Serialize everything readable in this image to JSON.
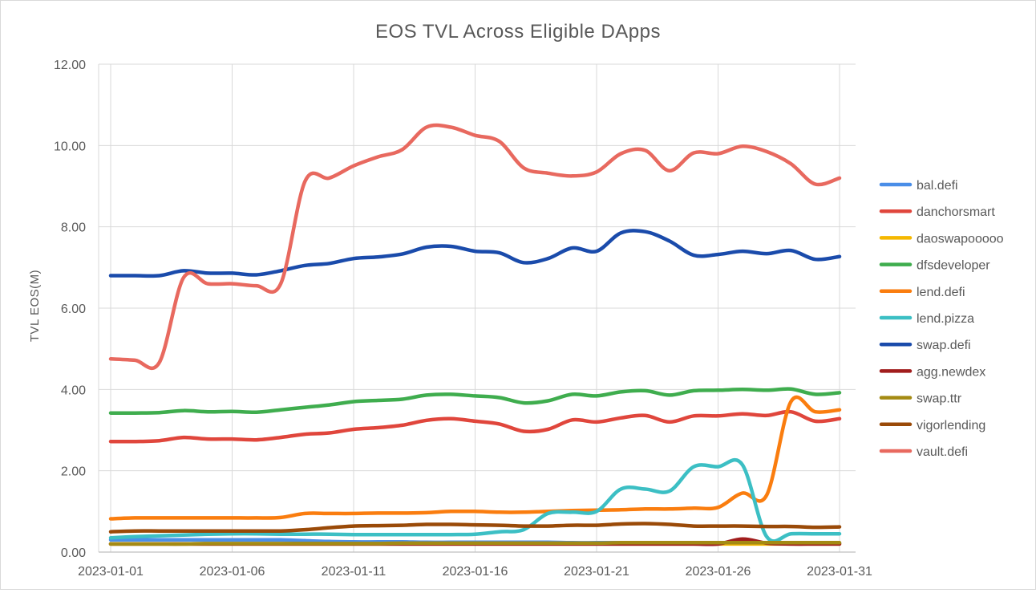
{
  "chart_data": {
    "type": "line",
    "title": "EOS TVL Across Eligible DApps",
    "xlabel": "",
    "ylabel": "TVL EOS(M)",
    "ylim": [
      0,
      12
    ],
    "yticks": [
      "0.00",
      "2.00",
      "4.00",
      "6.00",
      "8.00",
      "10.00",
      "12.00"
    ],
    "xticks": [
      "2023-01-01",
      "2023-01-06",
      "2023-01-11",
      "2023-01-16",
      "2023-01-21",
      "2023-01-26",
      "2023-01-31"
    ],
    "x": [
      "2023-01-01",
      "2023-01-02",
      "2023-01-03",
      "2023-01-04",
      "2023-01-05",
      "2023-01-06",
      "2023-01-07",
      "2023-01-08",
      "2023-01-09",
      "2023-01-10",
      "2023-01-11",
      "2023-01-12",
      "2023-01-13",
      "2023-01-14",
      "2023-01-15",
      "2023-01-16",
      "2023-01-17",
      "2023-01-18",
      "2023-01-19",
      "2023-01-20",
      "2023-01-21",
      "2023-01-22",
      "2023-01-23",
      "2023-01-24",
      "2023-01-25",
      "2023-01-26",
      "2023-01-27",
      "2023-01-28",
      "2023-01-29",
      "2023-01-30",
      "2023-01-31"
    ],
    "grid": true,
    "legend_position": "right",
    "series": [
      {
        "name": "bal.defi",
        "color": "#4a8ee8",
        "values": [
          0.3,
          0.3,
          0.3,
          0.3,
          0.3,
          0.3,
          0.3,
          0.3,
          0.28,
          0.26,
          0.25,
          0.25,
          0.25,
          0.24,
          0.24,
          0.24,
          0.24,
          0.24,
          0.24,
          0.23,
          0.23,
          0.23,
          0.23,
          0.23,
          0.23,
          0.23,
          0.22,
          0.22,
          0.22,
          0.22,
          0.22
        ]
      },
      {
        "name": "danchorsmart",
        "color": "#e0463c",
        "values": [
          2.72,
          2.72,
          2.74,
          2.82,
          2.78,
          2.78,
          2.76,
          2.82,
          2.9,
          2.93,
          3.02,
          3.06,
          3.12,
          3.24,
          3.28,
          3.22,
          3.15,
          2.97,
          3.02,
          3.25,
          3.2,
          3.3,
          3.36,
          3.2,
          3.35,
          3.35,
          3.4,
          3.36,
          3.45,
          3.22,
          3.28
        ]
      },
      {
        "name": "daoswapooooo",
        "color": "#f5b800",
        "values": [
          0.2,
          0.2,
          0.2,
          0.2,
          0.2,
          0.2,
          0.2,
          0.2,
          0.2,
          0.2,
          0.2,
          0.2,
          0.2,
          0.2,
          0.2,
          0.2,
          0.2,
          0.2,
          0.2,
          0.2,
          0.2,
          0.2,
          0.2,
          0.2,
          0.2,
          0.2,
          0.2,
          0.2,
          0.2,
          0.2,
          0.2
        ]
      },
      {
        "name": "dfsdeveloper",
        "color": "#3fad4e",
        "values": [
          3.42,
          3.42,
          3.43,
          3.48,
          3.45,
          3.46,
          3.44,
          3.5,
          3.56,
          3.62,
          3.7,
          3.73,
          3.76,
          3.86,
          3.88,
          3.84,
          3.8,
          3.67,
          3.72,
          3.88,
          3.84,
          3.94,
          3.97,
          3.86,
          3.97,
          3.98,
          4.0,
          3.98,
          4.01,
          3.88,
          3.92
        ]
      },
      {
        "name": "lend.defi",
        "color": "#fa7d0f",
        "values": [
          0.82,
          0.84,
          0.84,
          0.84,
          0.84,
          0.84,
          0.84,
          0.85,
          0.95,
          0.95,
          0.95,
          0.96,
          0.96,
          0.97,
          1.0,
          1.0,
          0.98,
          0.98,
          1.0,
          1.02,
          1.03,
          1.04,
          1.06,
          1.06,
          1.08,
          1.1,
          1.45,
          1.4,
          3.7,
          3.45,
          3.5
        ]
      },
      {
        "name": "lend.pizza",
        "color": "#3cbfc4",
        "values": [
          0.35,
          0.38,
          0.4,
          0.42,
          0.44,
          0.45,
          0.45,
          0.44,
          0.44,
          0.44,
          0.43,
          0.43,
          0.43,
          0.43,
          0.43,
          0.44,
          0.5,
          0.55,
          0.95,
          0.98,
          1.0,
          1.55,
          1.55,
          1.5,
          2.1,
          2.1,
          2.15,
          0.38,
          0.45,
          0.45,
          0.45
        ]
      },
      {
        "name": "swap.defi",
        "color": "#1a4bab",
        "values": [
          6.8,
          6.8,
          6.8,
          6.92,
          6.86,
          6.86,
          6.82,
          6.92,
          7.05,
          7.1,
          7.22,
          7.26,
          7.33,
          7.5,
          7.52,
          7.4,
          7.36,
          7.12,
          7.22,
          7.48,
          7.4,
          7.85,
          7.88,
          7.65,
          7.3,
          7.32,
          7.4,
          7.34,
          7.42,
          7.2,
          7.27
        ]
      },
      {
        "name": "agg.newdex",
        "color": "#a11d1d",
        "values": [
          0.2,
          0.2,
          0.2,
          0.2,
          0.2,
          0.2,
          0.2,
          0.2,
          0.2,
          0.2,
          0.2,
          0.2,
          0.2,
          0.2,
          0.2,
          0.2,
          0.2,
          0.2,
          0.2,
          0.2,
          0.2,
          0.2,
          0.2,
          0.2,
          0.2,
          0.2,
          0.32,
          0.22,
          0.2,
          0.2,
          0.2
        ]
      },
      {
        "name": "swap.ttr",
        "color": "#a48a13",
        "values": [
          0.2,
          0.2,
          0.2,
          0.2,
          0.21,
          0.21,
          0.21,
          0.21,
          0.21,
          0.21,
          0.21,
          0.21,
          0.22,
          0.22,
          0.22,
          0.22,
          0.22,
          0.22,
          0.22,
          0.22,
          0.22,
          0.23,
          0.23,
          0.23,
          0.23,
          0.23,
          0.23,
          0.23,
          0.23,
          0.23,
          0.23
        ]
      },
      {
        "name": "vigorlending",
        "color": "#9a4a08",
        "values": [
          0.5,
          0.52,
          0.52,
          0.52,
          0.52,
          0.52,
          0.52,
          0.52,
          0.55,
          0.6,
          0.64,
          0.65,
          0.66,
          0.68,
          0.68,
          0.67,
          0.66,
          0.64,
          0.64,
          0.66,
          0.66,
          0.69,
          0.7,
          0.68,
          0.64,
          0.64,
          0.64,
          0.63,
          0.63,
          0.61,
          0.62
        ]
      },
      {
        "name": "vault.defi",
        "color": "#e8695f",
        "values": [
          4.75,
          4.72,
          4.66,
          6.75,
          6.6,
          6.6,
          6.55,
          6.6,
          9.12,
          9.2,
          9.5,
          9.72,
          9.9,
          10.45,
          10.45,
          10.25,
          10.1,
          9.45,
          9.32,
          9.25,
          9.35,
          9.8,
          9.88,
          9.38,
          9.82,
          9.8,
          9.98,
          9.85,
          9.55,
          9.05,
          9.2
        ]
      }
    ]
  }
}
